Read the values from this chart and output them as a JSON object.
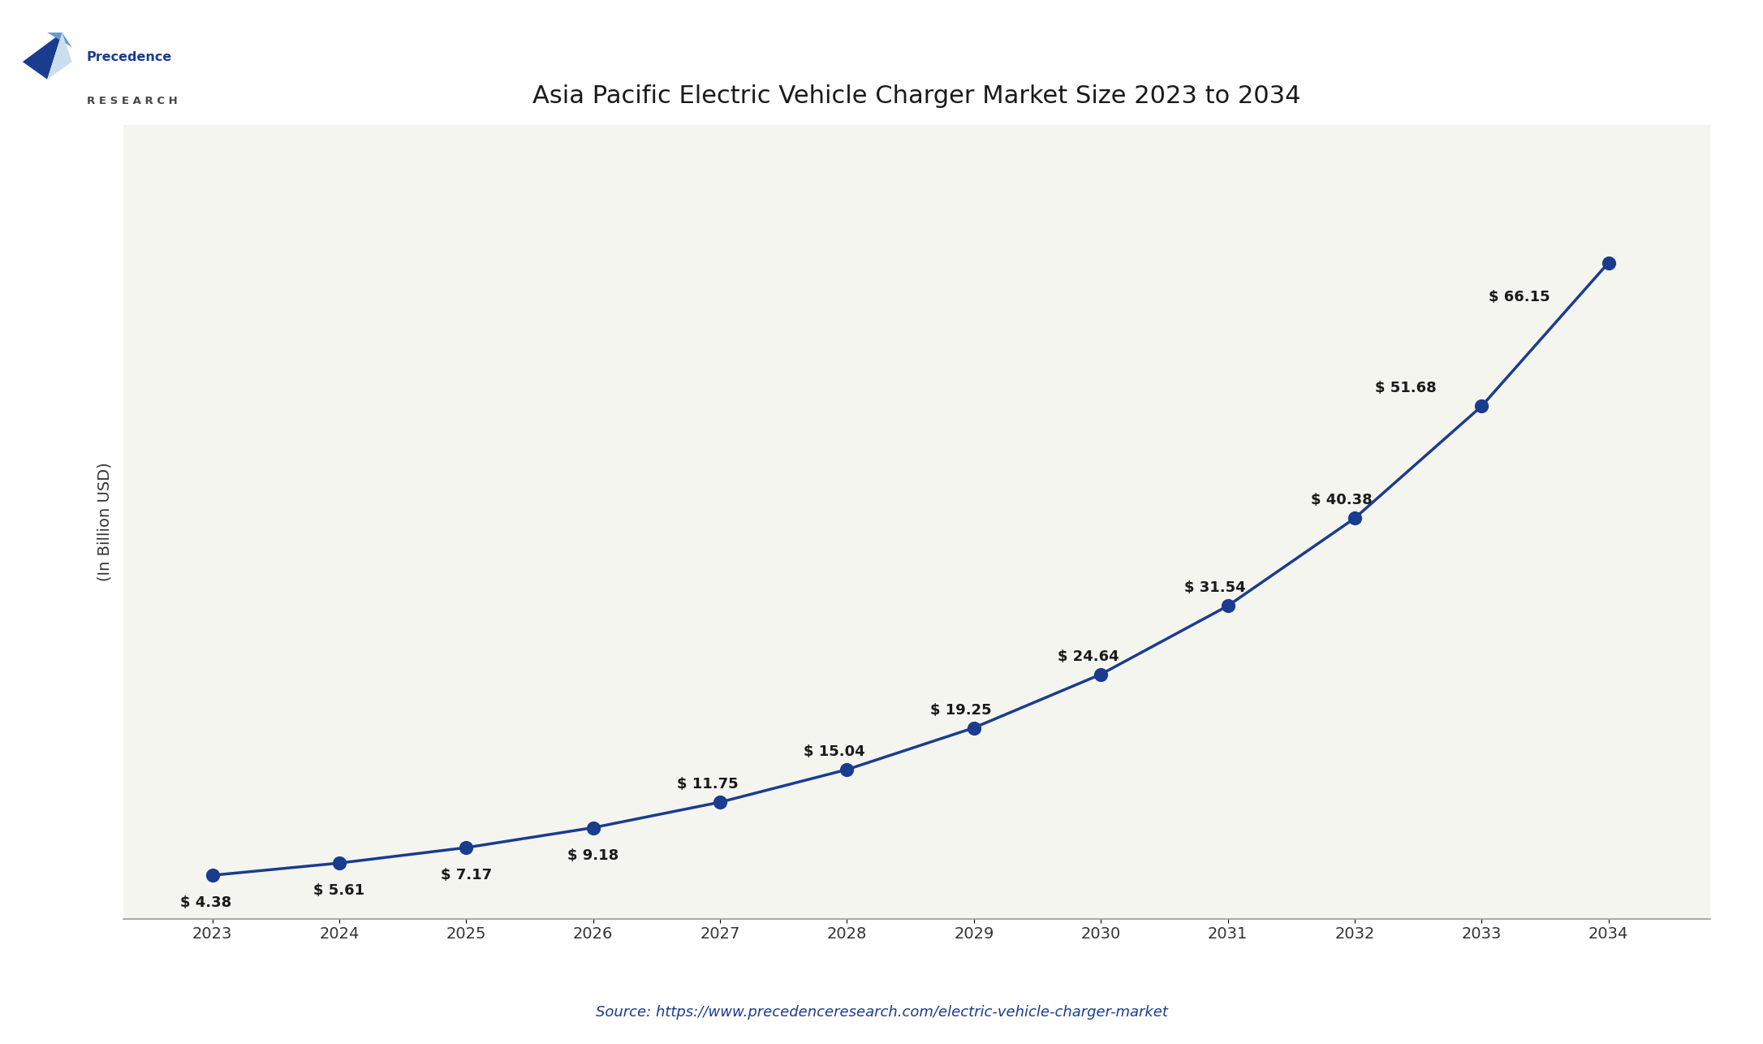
{
  "title": "Asia Pacific Electric Vehicle Charger Market Size 2023 to 2034",
  "years": [
    2023,
    2024,
    2025,
    2026,
    2027,
    2028,
    2029,
    2030,
    2031,
    2032,
    2033,
    2034
  ],
  "values": [
    4.38,
    5.61,
    7.17,
    9.18,
    11.75,
    15.04,
    19.25,
    24.64,
    31.54,
    40.38,
    51.68,
    66.15
  ],
  "labels": [
    "$ 4.38",
    "$ 5.61",
    "$ 7.17",
    "$ 9.18",
    "$ 11.75",
    "$ 15.04",
    "$ 19.25",
    "$ 24.64",
    "$ 31.54",
    "$ 40.38",
    "$ 51.68",
    "$ 66.15"
  ],
  "label_offsets_x": [
    -0.05,
    0.0,
    0.0,
    0.0,
    -0.1,
    -0.1,
    -0.1,
    -0.1,
    -0.1,
    -0.1,
    -0.6,
    -0.7
  ],
  "label_offsets_y": [
    -2.8,
    -2.8,
    -2.8,
    -2.8,
    1.8,
    1.8,
    1.8,
    1.8,
    1.8,
    1.8,
    1.8,
    -3.5
  ],
  "line_color": "#1a3c8f",
  "marker_color": "#1a3c8f",
  "title_color": "#1a1a1a",
  "label_color": "#1a1a1a",
  "ylabel": "(In Billion USD)",
  "source_text": "Source: https://www.precedenceresearch.com/electric-vehicle-charger-market",
  "source_color": "#1a3c8f",
  "bg_color": "#ffffff",
  "plot_bg_color": "#f5f5f0",
  "ylim": [
    0,
    80
  ],
  "title_fontsize": 22,
  "label_fontsize": 13,
  "axis_fontsize": 14,
  "ylabel_fontsize": 14,
  "source_fontsize": 13,
  "logo_precedence_color": "#1a3c8f",
  "logo_research_color": "#444444",
  "logo_tri1_color": "#1a3c8f",
  "logo_tri2_color": "#6699cc",
  "logo_tri3_color": "#ccddee"
}
